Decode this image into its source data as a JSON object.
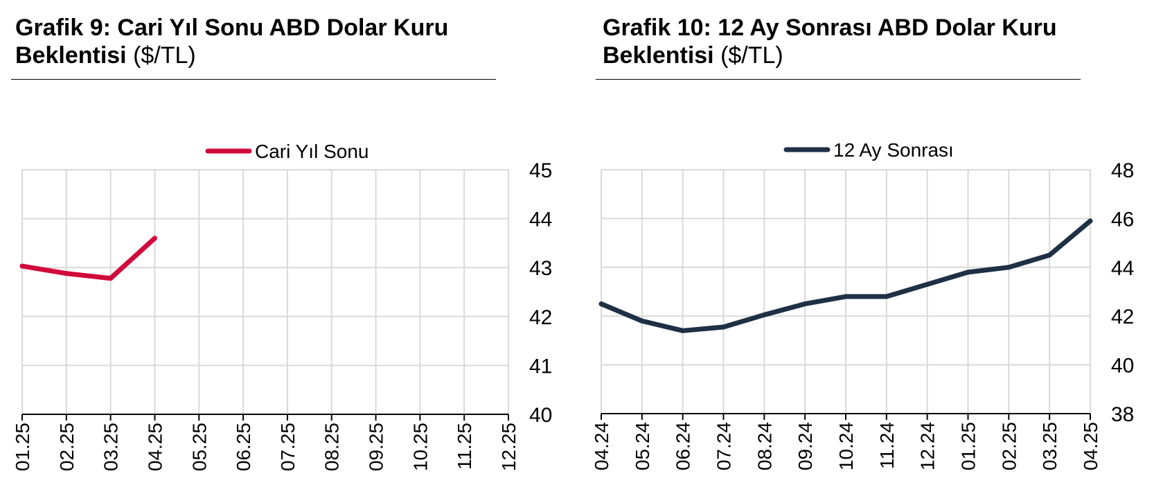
{
  "colors": {
    "series_left": "#d10a3c",
    "series_right": "#1e3044",
    "grid": "#d9d9d9",
    "axis": "#000000"
  },
  "left": {
    "title_bold": "Grafik 9: Cari Yıl Sonu ABD Dolar Kuru Beklentisi",
    "title_unit": "($/TL)"
  },
  "right": {
    "title_bold": "Grafik 10: 12 Ay Sonrası ABD Dolar Kuru Beklentisi",
    "title_unit": "($/TL)"
  },
  "chart_data": [
    {
      "type": "line",
      "title": "Grafik 9: Cari Yıl Sonu ABD Dolar Kuru Beklentisi ($/TL)",
      "categories": [
        "01.25",
        "02.25",
        "03.25",
        "04.25",
        "05.25",
        "06.25",
        "07.25",
        "08.25",
        "09.25",
        "10.25",
        "11.25",
        "12.25"
      ],
      "series": [
        {
          "name": "Cari Yıl Sonu",
          "values": [
            43.03,
            42.88,
            42.78,
            43.6,
            null,
            null,
            null,
            null,
            null,
            null,
            null,
            null
          ]
        }
      ],
      "ylim": [
        40,
        45
      ],
      "yticks": [
        40,
        41,
        42,
        43,
        44,
        45
      ],
      "y_axis_side": "right",
      "grid": true,
      "legend": "top-center"
    },
    {
      "type": "line",
      "title": "Grafik 10: 12 Ay Sonrası ABD Dolar Kuru Beklentisi ($/TL)",
      "categories": [
        "04.24",
        "05.24",
        "06.24",
        "07.24",
        "08.24",
        "09.24",
        "10.24",
        "11.24",
        "12.24",
        "01.25",
        "02.25",
        "03.25",
        "04.25"
      ],
      "series": [
        {
          "name": "12 Ay Sonrası",
          "values": [
            42.5,
            41.8,
            41.4,
            41.55,
            42.05,
            42.5,
            42.8,
            42.8,
            43.3,
            43.8,
            44.0,
            44.5,
            45.9
          ]
        }
      ],
      "ylim": [
        38,
        48
      ],
      "yticks": [
        38,
        40,
        42,
        44,
        46,
        48
      ],
      "y_axis_side": "right",
      "grid": true,
      "legend": "top-center"
    }
  ]
}
